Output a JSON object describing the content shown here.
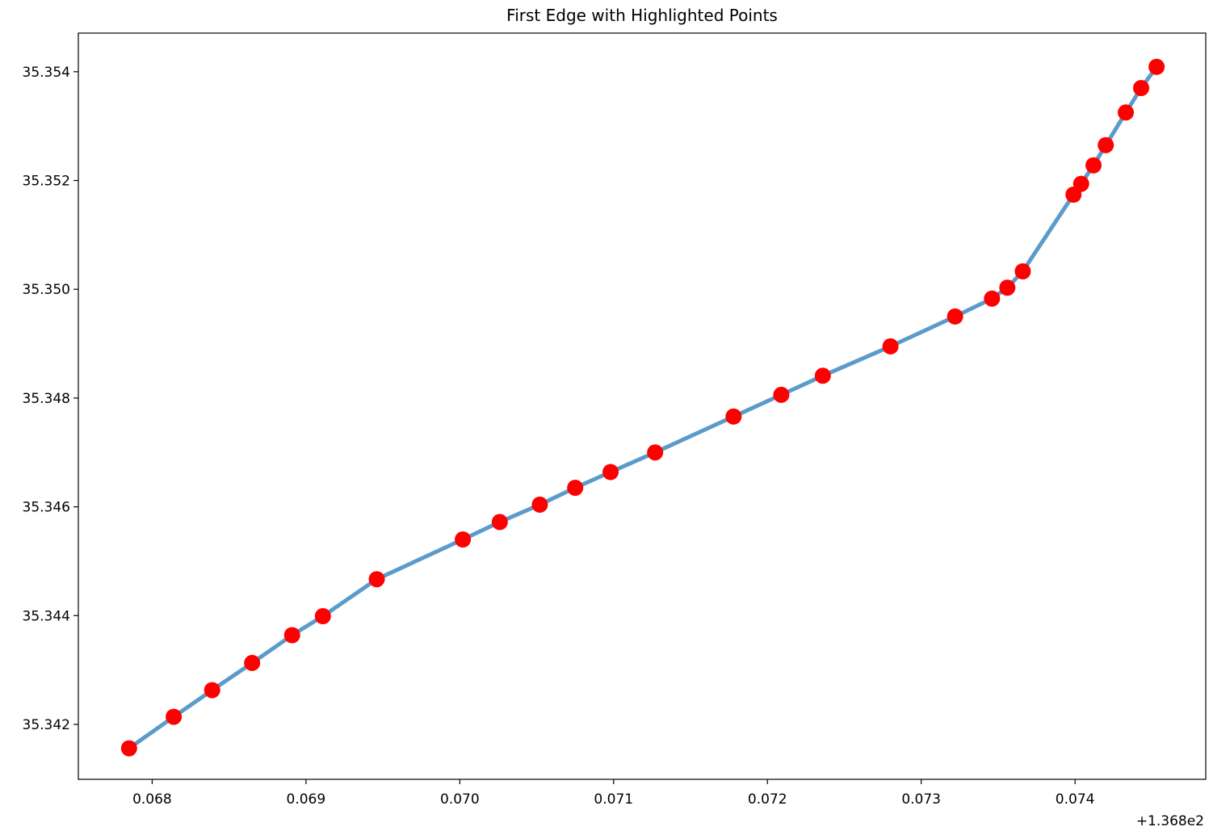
{
  "chart_data": {
    "type": "line",
    "title": "First Edge with Highlighted Points",
    "xlabel": "",
    "ylabel": "",
    "x_offset_label": "+1.368e2",
    "x_tick_labels": [
      "0.068",
      "0.069",
      "0.070",
      "0.071",
      "0.072",
      "0.073",
      "0.074"
    ],
    "x_ticks": [
      0.068,
      0.069,
      0.07,
      0.071,
      0.072,
      0.073,
      0.074
    ],
    "y_tick_labels": [
      "35.342",
      "35.344",
      "35.346",
      "35.348",
      "35.350",
      "35.352",
      "35.354"
    ],
    "y_ticks": [
      35.342,
      35.344,
      35.346,
      35.348,
      35.35,
      35.352,
      35.354
    ],
    "xlim": [
      0.06752,
      0.07485
    ],
    "ylim": [
      35.34099,
      35.35471
    ],
    "grid": false,
    "line_color": "#5b9bcb",
    "marker_color": "#ff0000",
    "series": [
      {
        "x": [
          0.06785,
          0.06814,
          0.06839,
          0.06865,
          0.06891,
          0.06911,
          0.06946,
          0.07002,
          0.07026,
          0.07052,
          0.07075,
          0.07098,
          0.07127,
          0.07178,
          0.07209,
          0.07236,
          0.0728,
          0.07322,
          0.07346,
          0.07356,
          0.07366,
          0.07399,
          0.07404,
          0.07412,
          0.0742,
          0.07433,
          0.07443,
          0.07453
        ],
        "y": [
          35.34156,
          35.34214,
          35.34263,
          35.34313,
          35.34364,
          35.34399,
          35.34467,
          35.3454,
          35.34572,
          35.34604,
          35.34635,
          35.34664,
          35.347,
          35.34766,
          35.34806,
          35.34841,
          35.34895,
          35.3495,
          35.34983,
          35.35003,
          35.35033,
          35.35174,
          35.35194,
          35.35228,
          35.35265,
          35.35325,
          35.3537,
          35.35409
        ]
      }
    ]
  }
}
